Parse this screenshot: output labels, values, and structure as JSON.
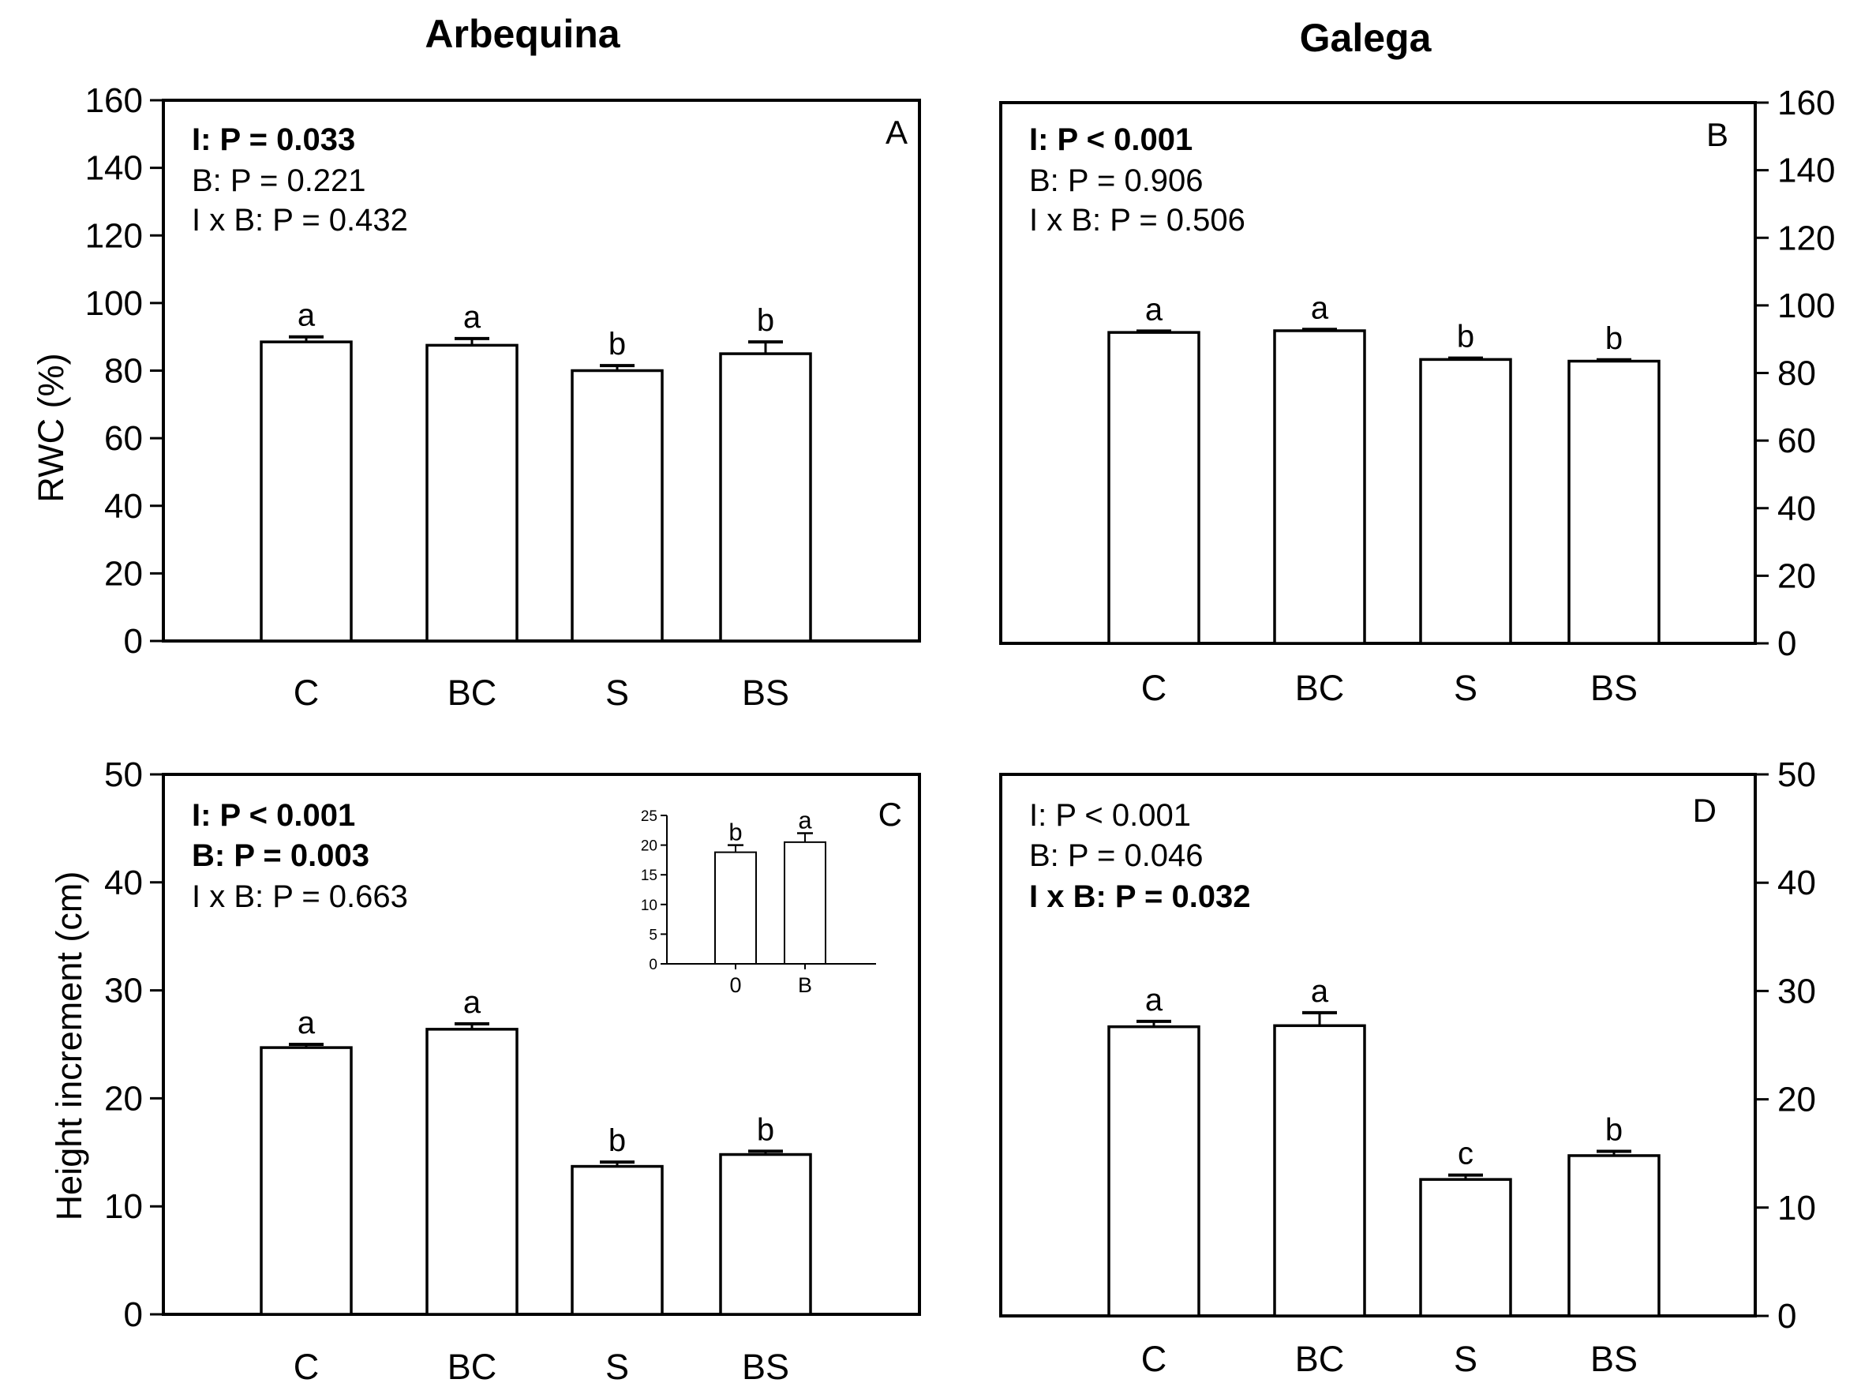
{
  "column_titles": [
    "Arbequina",
    "Galega"
  ],
  "chart_data": [
    {
      "panel": "A",
      "type": "bar",
      "cultivar": "Arbequina",
      "categories": [
        "C",
        "BC",
        "S",
        "BS"
      ],
      "values": [
        88.5,
        87.5,
        80,
        85
      ],
      "errors": [
        1.5,
        2,
        1.5,
        3.5
      ],
      "significance": [
        "a",
        "a",
        "b",
        "b"
      ],
      "ylabel": "RWC (%)",
      "ylim": [
        0,
        160
      ],
      "yticks": [
        "0",
        "20",
        "40",
        "60",
        "80",
        "100",
        "120",
        "140",
        "160"
      ],
      "stats": [
        {
          "text": "I: P = 0.033",
          "bold": true
        },
        {
          "text": "B: P = 0.221",
          "bold": false
        },
        {
          "text": "I x B: P = 0.432",
          "bold": false
        }
      ]
    },
    {
      "panel": "B",
      "type": "bar",
      "cultivar": "Galega",
      "categories": [
        "C",
        "BC",
        "S",
        "BS"
      ],
      "values": [
        92,
        92.5,
        84,
        83.5
      ],
      "errors": [
        0.4,
        0.4,
        0.4,
        0.4
      ],
      "significance": [
        "a",
        "a",
        "b",
        "b"
      ],
      "ylabel": "",
      "ylim": [
        0,
        160
      ],
      "yticks": [
        "0",
        "20",
        "40",
        "60",
        "80",
        "100",
        "120",
        "140",
        "160"
      ],
      "stats": [
        {
          "text": "I: P < 0.001",
          "bold": true
        },
        {
          "text": "B: P = 0.906",
          "bold": false
        },
        {
          "text": "I x B: P = 0.506",
          "bold": false
        }
      ]
    },
    {
      "panel": "C",
      "type": "bar",
      "cultivar": "Arbequina",
      "categories": [
        "C",
        "BC",
        "S",
        "BS"
      ],
      "values": [
        24.7,
        26.4,
        13.7,
        14.8
      ],
      "errors": [
        0.3,
        0.5,
        0.4,
        0.3
      ],
      "significance": [
        "a",
        "a",
        "b",
        "b"
      ],
      "ylabel": "Height increment (cm)",
      "ylim": [
        0,
        50
      ],
      "yticks": [
        "0",
        "10",
        "20",
        "30",
        "40",
        "50"
      ],
      "stats": [
        {
          "text": "I: P < 0.001",
          "bold": true
        },
        {
          "text": "B: P = 0.003",
          "bold": true
        },
        {
          "text": "I x B: P = 0.663",
          "bold": false
        }
      ],
      "inset": {
        "type": "bar",
        "categories": [
          "0",
          "B"
        ],
        "values": [
          18.8,
          20.5
        ],
        "errors": [
          1.2,
          1.5
        ],
        "significance": [
          "b",
          "a"
        ],
        "ylim": [
          0,
          25
        ],
        "yticks": [
          "0",
          "5",
          "10",
          "15",
          "20",
          "25"
        ]
      }
    },
    {
      "panel": "D",
      "type": "bar",
      "cultivar": "Galega",
      "categories": [
        "C",
        "BC",
        "S",
        "BS"
      ],
      "values": [
        26.7,
        26.8,
        12.6,
        14.8
      ],
      "errors": [
        0.5,
        1.2,
        0.4,
        0.4
      ],
      "significance": [
        "a",
        "a",
        "c",
        "b"
      ],
      "ylabel": "",
      "ylim": [
        0,
        50
      ],
      "yticks": [
        "0",
        "10",
        "20",
        "30",
        "40",
        "50"
      ],
      "stats": [
        {
          "text": "I: P < 0.001",
          "bold": false
        },
        {
          "text": "B: P = 0.046",
          "bold": false
        },
        {
          "text": "I x B: P = 0.032",
          "bold": true
        }
      ]
    }
  ]
}
